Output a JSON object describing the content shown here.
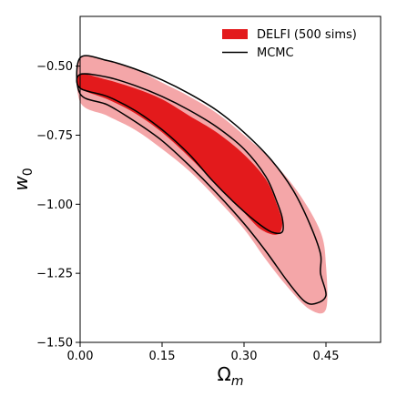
{
  "chart_data": {
    "type": "contour",
    "xlabel": "Ω",
    "xlabel_sub": "m",
    "ylabel": "w",
    "ylabel_sub": "0",
    "xlim": [
      0.0,
      0.55
    ],
    "ylim": [
      -1.5,
      -0.32
    ],
    "xticks": [
      0.0,
      0.15,
      0.3,
      0.45
    ],
    "xtick_labels": [
      "0.00",
      "0.15",
      "0.30",
      "0.45"
    ],
    "yticks": [
      -1.5,
      -1.25,
      -1.0,
      -0.75,
      -0.5
    ],
    "ytick_labels": [
      "−1.50",
      "−1.25",
      "−1.00",
      "−0.75",
      "−0.50"
    ],
    "grid": false,
    "legend_position": "top-right",
    "colors": {
      "delfi_inner": "#e31a1c",
      "delfi_outer": "#f4a6a8",
      "mcmc": "#000000"
    },
    "series": [
      {
        "name": "DELFI (500 sims)",
        "kind": "filled-contours",
        "levels": [
          {
            "level": "outer",
            "points": [
              [
                0.0,
                -0.63
              ],
              [
                0.0,
                -0.47
              ],
              [
                0.05,
                -0.48
              ],
              [
                0.1,
                -0.51
              ],
              [
                0.15,
                -0.56
              ],
              [
                0.2,
                -0.61
              ],
              [
                0.25,
                -0.67
              ],
              [
                0.3,
                -0.75
              ],
              [
                0.35,
                -0.84
              ],
              [
                0.4,
                -0.96
              ],
              [
                0.44,
                -1.1
              ],
              [
                0.45,
                -1.22
              ],
              [
                0.45,
                -1.38
              ],
              [
                0.42,
                -1.38
              ],
              [
                0.38,
                -1.3
              ],
              [
                0.34,
                -1.2
              ],
              [
                0.3,
                -1.09
              ],
              [
                0.25,
                -0.98
              ],
              [
                0.2,
                -0.88
              ],
              [
                0.15,
                -0.8
              ],
              [
                0.1,
                -0.73
              ],
              [
                0.05,
                -0.68
              ],
              [
                0.0,
                -0.63
              ]
            ]
          },
          {
            "level": "inner",
            "points": [
              [
                0.0,
                -0.58
              ],
              [
                0.0,
                -0.53
              ],
              [
                0.05,
                -0.55
              ],
              [
                0.1,
                -0.58
              ],
              [
                0.15,
                -0.62
              ],
              [
                0.2,
                -0.68
              ],
              [
                0.25,
                -0.74
              ],
              [
                0.3,
                -0.82
              ],
              [
                0.34,
                -0.91
              ],
              [
                0.36,
                -1.0
              ],
              [
                0.37,
                -1.07
              ],
              [
                0.36,
                -1.11
              ],
              [
                0.33,
                -1.09
              ],
              [
                0.3,
                -1.03
              ],
              [
                0.25,
                -0.93
              ],
              [
                0.2,
                -0.83
              ],
              [
                0.15,
                -0.74
              ],
              [
                0.1,
                -0.67
              ],
              [
                0.05,
                -0.62
              ],
              [
                0.0,
                -0.58
              ]
            ]
          }
        ]
      },
      {
        "name": "MCMC",
        "kind": "line-contours",
        "levels": [
          {
            "level": "outer",
            "points": [
              [
                0.0,
                -0.6
              ],
              [
                0.0,
                -0.47
              ],
              [
                0.05,
                -0.48
              ],
              [
                0.1,
                -0.51
              ],
              [
                0.15,
                -0.55
              ],
              [
                0.2,
                -0.6
              ],
              [
                0.25,
                -0.66
              ],
              [
                0.3,
                -0.74
              ],
              [
                0.35,
                -0.84
              ],
              [
                0.39,
                -0.95
              ],
              [
                0.42,
                -1.07
              ],
              [
                0.44,
                -1.18
              ],
              [
                0.44,
                -1.25
              ],
              [
                0.45,
                -1.33
              ],
              [
                0.43,
                -1.36
              ],
              [
                0.41,
                -1.35
              ],
              [
                0.38,
                -1.28
              ],
              [
                0.34,
                -1.17
              ],
              [
                0.3,
                -1.07
              ],
              [
                0.25,
                -0.96
              ],
              [
                0.2,
                -0.86
              ],
              [
                0.15,
                -0.77
              ],
              [
                0.1,
                -0.7
              ],
              [
                0.05,
                -0.64
              ],
              [
                0.0,
                -0.6
              ]
            ]
          },
          {
            "level": "inner",
            "points": [
              [
                0.0,
                -0.58
              ],
              [
                0.0,
                -0.53
              ],
              [
                0.05,
                -0.54
              ],
              [
                0.1,
                -0.57
              ],
              [
                0.15,
                -0.61
              ],
              [
                0.2,
                -0.66
              ],
              [
                0.25,
                -0.72
              ],
              [
                0.3,
                -0.8
              ],
              [
                0.34,
                -0.9
              ],
              [
                0.36,
                -0.99
              ],
              [
                0.37,
                -1.05
              ],
              [
                0.37,
                -1.1
              ],
              [
                0.35,
                -1.1
              ],
              [
                0.32,
                -1.06
              ],
              [
                0.28,
                -0.99
              ],
              [
                0.24,
                -0.91
              ],
              [
                0.2,
                -0.82
              ],
              [
                0.15,
                -0.73
              ],
              [
                0.1,
                -0.66
              ],
              [
                0.05,
                -0.61
              ],
              [
                0.0,
                -0.58
              ]
            ]
          }
        ]
      }
    ]
  }
}
